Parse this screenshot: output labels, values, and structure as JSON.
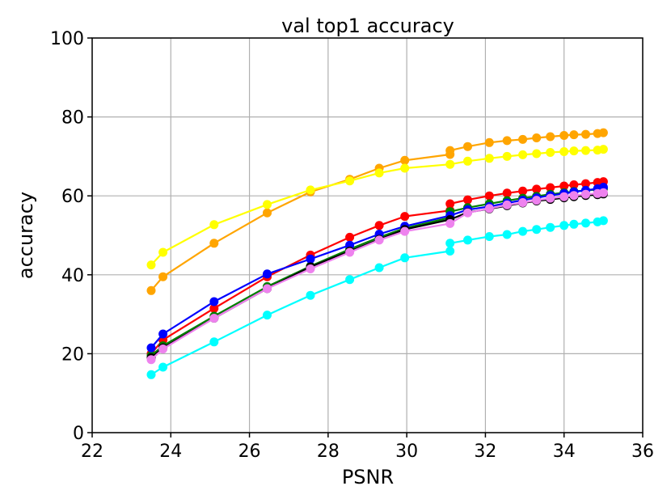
{
  "chart_data": {
    "type": "line",
    "title": "val top1 accuracy",
    "xlabel": "PSNR",
    "ylabel": "accuracy",
    "xlim": [
      22,
      36
    ],
    "ylim": [
      0,
      100
    ],
    "xticks": [
      "22",
      "24",
      "26",
      "28",
      "30",
      "32",
      "34",
      "36"
    ],
    "yticks": [
      "0",
      "20",
      "40",
      "60",
      "80",
      "100"
    ],
    "grid": true,
    "series": [
      {
        "color": "#ffa500",
        "points": [
          [
            23.5,
            36
          ],
          [
            23.8,
            39.5
          ],
          [
            25.1,
            48
          ],
          [
            26.45,
            55.7
          ],
          [
            27.55,
            61
          ],
          [
            28.55,
            64.2
          ],
          [
            29.3,
            67
          ],
          [
            29.95,
            69
          ],
          [
            31.1,
            70.5
          ],
          [
            31.1,
            71.5
          ],
          [
            31.55,
            72.5
          ],
          [
            32.1,
            73.5
          ],
          [
            32.55,
            74
          ],
          [
            32.95,
            74.3
          ],
          [
            33.3,
            74.7
          ],
          [
            33.65,
            75
          ],
          [
            34.0,
            75.3
          ],
          [
            34.25,
            75.5
          ],
          [
            34.55,
            75.6
          ],
          [
            34.85,
            75.8
          ],
          [
            35.0,
            76
          ]
        ]
      },
      {
        "color": "#ffff00",
        "points": [
          [
            23.5,
            42.5
          ],
          [
            23.8,
            45.7
          ],
          [
            25.1,
            52.7
          ],
          [
            26.45,
            57.8
          ],
          [
            27.55,
            61.5
          ],
          [
            28.55,
            63.8
          ],
          [
            29.3,
            65.8
          ],
          [
            29.95,
            67
          ],
          [
            31.1,
            68
          ],
          [
            31.55,
            68.8
          ],
          [
            32.1,
            69.5
          ],
          [
            32.55,
            70
          ],
          [
            32.95,
            70.4
          ],
          [
            33.3,
            70.7
          ],
          [
            33.65,
            71
          ],
          [
            34.0,
            71.2
          ],
          [
            34.25,
            71.4
          ],
          [
            34.55,
            71.5
          ],
          [
            34.85,
            71.6
          ],
          [
            35.0,
            71.8
          ]
        ]
      },
      {
        "color": "#ff0000",
        "points": [
          [
            23.5,
            20
          ],
          [
            23.8,
            23.5
          ],
          [
            25.1,
            31.5
          ],
          [
            26.45,
            39.5
          ],
          [
            27.55,
            45
          ],
          [
            28.55,
            49.5
          ],
          [
            29.3,
            52.5
          ],
          [
            29.95,
            54.8
          ],
          [
            31.1,
            56.3
          ],
          [
            31.1,
            58
          ],
          [
            31.55,
            59
          ],
          [
            32.1,
            60
          ],
          [
            32.55,
            60.7
          ],
          [
            32.95,
            61.2
          ],
          [
            33.3,
            61.7
          ],
          [
            33.65,
            62.1
          ],
          [
            34.0,
            62.5
          ],
          [
            34.25,
            62.8
          ],
          [
            34.55,
            63.1
          ],
          [
            34.85,
            63.4
          ],
          [
            35.0,
            63.6
          ]
        ]
      },
      {
        "color": "#008000",
        "points": [
          [
            23.5,
            19.5
          ],
          [
            23.8,
            22
          ],
          [
            25.1,
            29.5
          ],
          [
            26.45,
            37
          ],
          [
            27.55,
            42.2
          ],
          [
            28.55,
            46.5
          ],
          [
            29.3,
            49.5
          ],
          [
            29.95,
            51.8
          ],
          [
            31.1,
            54.5
          ],
          [
            31.1,
            56
          ],
          [
            31.55,
            57
          ],
          [
            32.1,
            58
          ],
          [
            32.55,
            58.8
          ],
          [
            32.95,
            59.4
          ],
          [
            33.3,
            59.9
          ],
          [
            33.65,
            60.4
          ],
          [
            34.0,
            60.8
          ],
          [
            34.25,
            61.1
          ],
          [
            34.55,
            61.4
          ],
          [
            34.85,
            61.6
          ],
          [
            35.0,
            61.8
          ]
        ]
      },
      {
        "color": "#0000ff",
        "points": [
          [
            23.5,
            21.5
          ],
          [
            23.8,
            25
          ],
          [
            25.1,
            33.2
          ],
          [
            26.45,
            40.2
          ],
          [
            27.55,
            44
          ],
          [
            28.55,
            47.5
          ],
          [
            29.3,
            50.3
          ],
          [
            29.95,
            52.3
          ],
          [
            31.1,
            55
          ],
          [
            31.55,
            56.5
          ],
          [
            32.1,
            57.3
          ],
          [
            32.55,
            58.2
          ],
          [
            32.95,
            58.9
          ],
          [
            33.3,
            59.5
          ],
          [
            33.65,
            60.1
          ],
          [
            34.0,
            60.6
          ],
          [
            34.25,
            61
          ],
          [
            34.55,
            61.4
          ],
          [
            34.85,
            61.8
          ],
          [
            35.0,
            62.2
          ]
        ]
      },
      {
        "color": "#000000",
        "points": [
          [
            23.5,
            19
          ],
          [
            23.8,
            21.5
          ],
          [
            25.1,
            29
          ],
          [
            26.45,
            36.5
          ],
          [
            27.55,
            42
          ],
          [
            28.55,
            46
          ],
          [
            29.3,
            49
          ],
          [
            29.95,
            51.5
          ],
          [
            31.1,
            54
          ],
          [
            31.55,
            55.8
          ],
          [
            32.1,
            56.7
          ],
          [
            32.55,
            57.5
          ],
          [
            32.95,
            58.2
          ],
          [
            33.3,
            58.7
          ],
          [
            33.65,
            59.1
          ],
          [
            34.0,
            59.5
          ],
          [
            34.25,
            59.8
          ],
          [
            34.55,
            60.1
          ],
          [
            34.85,
            60.3
          ],
          [
            35.0,
            60.5
          ]
        ]
      },
      {
        "color": "#ee82ee",
        "points": [
          [
            23.5,
            18.5
          ],
          [
            23.8,
            21.2
          ],
          [
            25.1,
            29
          ],
          [
            26.45,
            36.5
          ],
          [
            27.55,
            41.5
          ],
          [
            28.55,
            45.7
          ],
          [
            29.3,
            48.8
          ],
          [
            29.95,
            51
          ],
          [
            31.1,
            53
          ],
          [
            31.55,
            55.7
          ],
          [
            32.1,
            56.8
          ],
          [
            32.55,
            57.7
          ],
          [
            32.95,
            58.3
          ],
          [
            33.3,
            58.9
          ],
          [
            33.65,
            59.4
          ],
          [
            34.0,
            59.8
          ],
          [
            34.25,
            60.1
          ],
          [
            34.55,
            60.4
          ],
          [
            34.85,
            60.6
          ],
          [
            35.0,
            60.8
          ]
        ]
      },
      {
        "color": "#00ffff",
        "points": [
          [
            23.5,
            14.7
          ],
          [
            23.8,
            16.6
          ],
          [
            25.1,
            23
          ],
          [
            26.45,
            29.8
          ],
          [
            27.55,
            34.8
          ],
          [
            28.55,
            38.8
          ],
          [
            29.3,
            41.8
          ],
          [
            29.95,
            44.3
          ],
          [
            31.1,
            46
          ],
          [
            31.1,
            48
          ],
          [
            31.55,
            48.8
          ],
          [
            32.1,
            49.7
          ],
          [
            32.55,
            50.2
          ],
          [
            32.95,
            51
          ],
          [
            33.3,
            51.5
          ],
          [
            33.65,
            52
          ],
          [
            34.0,
            52.5
          ],
          [
            34.25,
            52.8
          ],
          [
            34.55,
            53.1
          ],
          [
            34.85,
            53.4
          ],
          [
            35.0,
            53.7
          ]
        ]
      }
    ]
  }
}
